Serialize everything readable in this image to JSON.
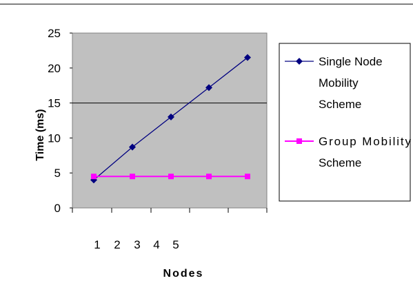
{
  "chart_data": {
    "type": "line",
    "title": "",
    "xlabel": "Nodes",
    "ylabel": "Time (ms)",
    "categories": [
      "1",
      "2",
      "3",
      "4",
      "5"
    ],
    "ylim": [
      0,
      25
    ],
    "yticks": [
      "0",
      "5",
      "10",
      "15",
      "20",
      "25"
    ],
    "gridlines": [
      15
    ],
    "plot_background": "#c0c0c0",
    "legend_position": "right",
    "series": [
      {
        "name": "Single Node Mobility Scheme",
        "name_lines": [
          "Single Node",
          "Mobility",
          "Scheme"
        ],
        "values": [
          4.0,
          8.7,
          13.0,
          17.2,
          21.5
        ],
        "color": "#000080",
        "marker": "diamond"
      },
      {
        "name": "Group Mobility Scheme",
        "name_lines": [
          "Group Mobility",
          "Scheme"
        ],
        "values": [
          4.5,
          4.5,
          4.5,
          4.5,
          4.5
        ],
        "color": "#ff00ff",
        "marker": "square"
      }
    ]
  }
}
